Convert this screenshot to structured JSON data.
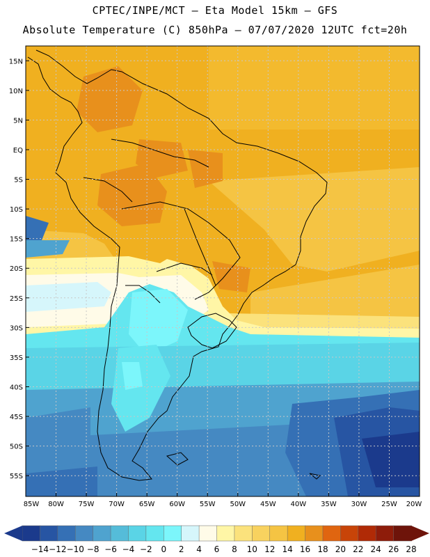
{
  "header": {
    "line1": "CPTEC/INPE/MCT –  Eta Model 15km – GFS",
    "line2": "Absolute Temperature (C) 850hPa – 07/07/2020 12UTC fct=20h"
  },
  "map": {
    "lon_range": [
      -85,
      -20
    ],
    "lat_range": [
      -58.5,
      17.5
    ],
    "lat_labels": [
      "15N",
      "10N",
      "5N",
      "EQ",
      "5S",
      "10S",
      "15S",
      "20S",
      "25S",
      "30S",
      "35S",
      "40S",
      "45S",
      "50S",
      "55S"
    ],
    "lat_values": [
      15,
      10,
      5,
      0,
      -5,
      -10,
      -15,
      -20,
      -25,
      -30,
      -35,
      -40,
      -45,
      -50,
      -55
    ],
    "lon_labels": [
      "85W",
      "80W",
      "75W",
      "70W",
      "65W",
      "60W",
      "55W",
      "50W",
      "45W",
      "40W",
      "35W",
      "30W",
      "25W",
      "20W"
    ],
    "lon_values": [
      -85,
      -80,
      -75,
      -70,
      -65,
      -60,
      -55,
      -50,
      -45,
      -40,
      -35,
      -30,
      -25,
      -20
    ]
  },
  "legend": {
    "labels": [
      "-14",
      "-12",
      "-10",
      "-8",
      "-6",
      "-4",
      "-2",
      "0",
      "2",
      "4",
      "6",
      "8",
      "10",
      "12",
      "14",
      "16",
      "18",
      "20",
      "22",
      "24",
      "26",
      "28"
    ],
    "colors": [
      "#1b3a8c",
      "#2755a3",
      "#3570b5",
      "#4589c2",
      "#4fa3cf",
      "#55bcd9",
      "#5ad4e6",
      "#64e6ef",
      "#7cf6fb",
      "#d6f6fb",
      "#fffbe8",
      "#fff6a6",
      "#fbe27c",
      "#f8d25f",
      "#f5c443",
      "#f0b020",
      "#e8901c",
      "#e06510",
      "#c84408",
      "#b02a06",
      "#8e1c0a",
      "#6e140a"
    ]
  }
}
